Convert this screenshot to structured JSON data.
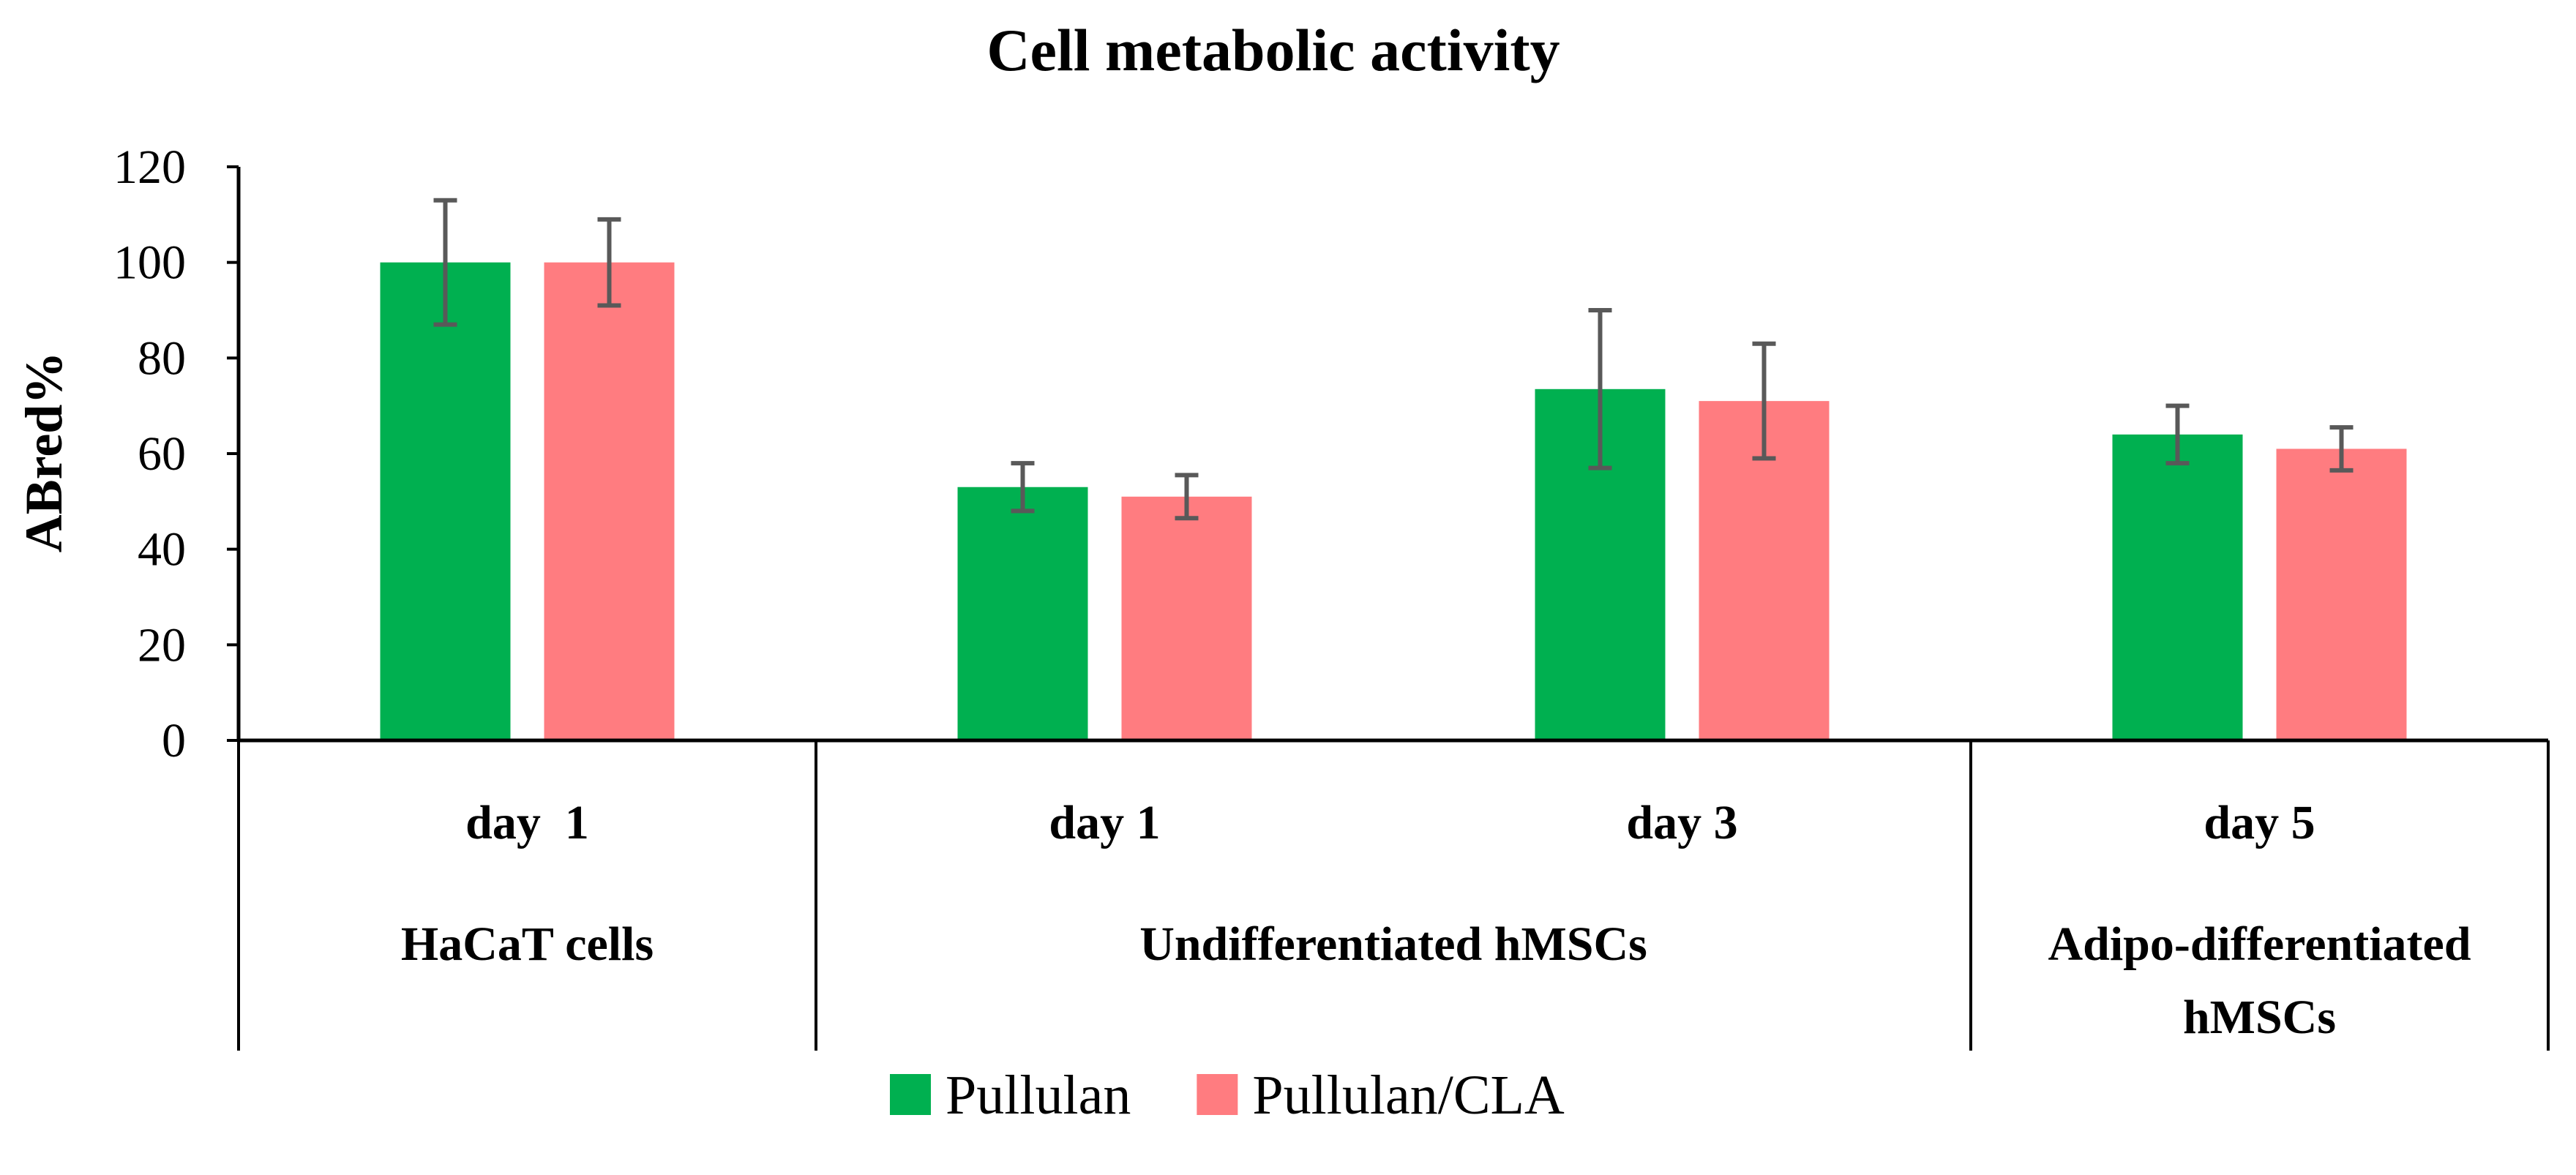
{
  "chart_data": {
    "type": "bar",
    "title": "Cell metabolic activity",
    "ylabel": "ABred%",
    "xlabel": "",
    "ylim": [
      0,
      120
    ],
    "yticks": [
      0,
      20,
      40,
      60,
      80,
      100,
      120
    ],
    "grid": false,
    "legend_position": "bottom",
    "categories": [
      "day  1",
      "day 1",
      "day 3",
      "day 5"
    ],
    "groups": [
      {
        "lines": [
          "HaCaT cells"
        ],
        "span": [
          0,
          0
        ]
      },
      {
        "lines": [
          "Undifferentiated hMSCs"
        ],
        "span": [
          1,
          2
        ]
      },
      {
        "lines": [
          "Adipo-differentiated",
          "hMSCs"
        ],
        "span": [
          3,
          3
        ]
      }
    ],
    "series": [
      {
        "name": "Pullulan",
        "color": "#00b050",
        "values": [
          100,
          53,
          73.5,
          64
        ],
        "errors": [
          13,
          5,
          16.5,
          6
        ]
      },
      {
        "name": "Pullulan/CLA",
        "color": "#ff7c80",
        "values": [
          100,
          51,
          71,
          61
        ],
        "errors": [
          9,
          4.5,
          12,
          4.5
        ]
      }
    ],
    "error_bar_color": "#595959"
  }
}
